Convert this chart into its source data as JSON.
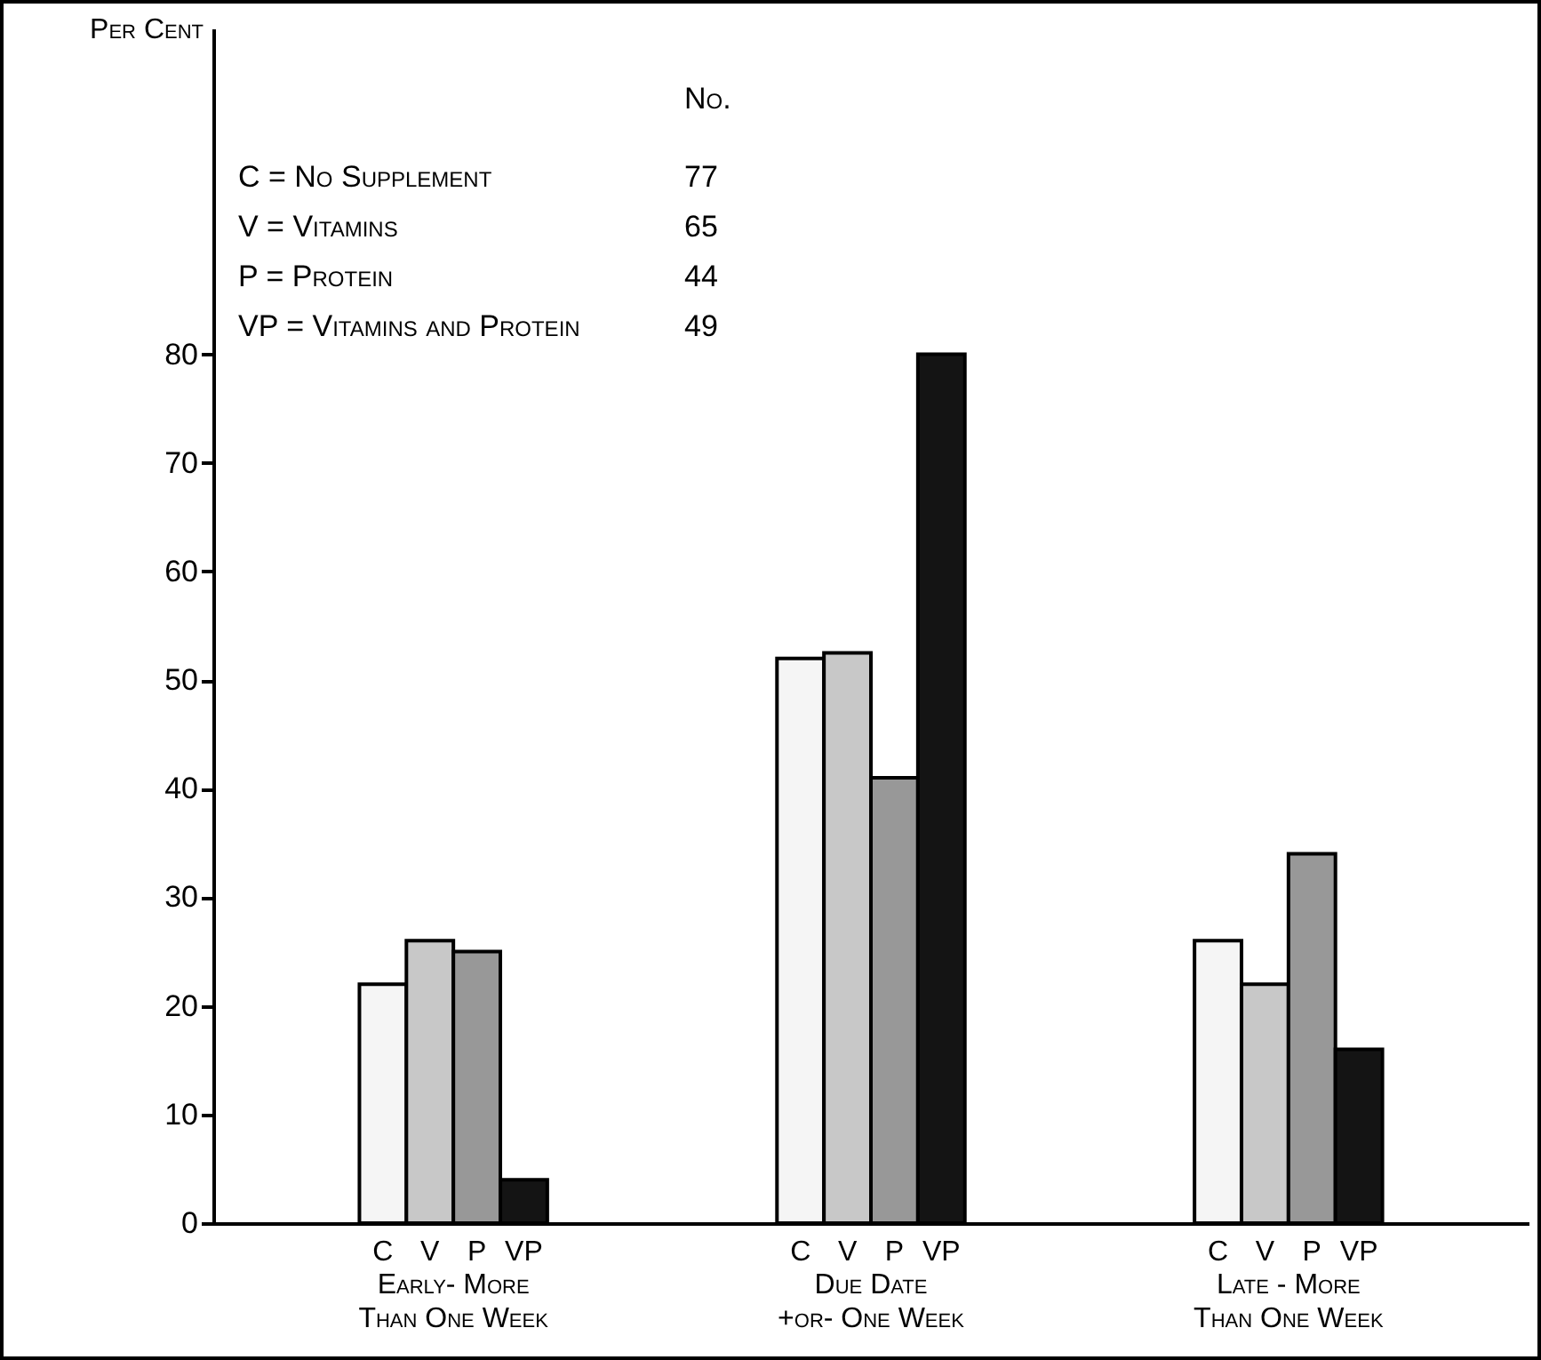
{
  "chart_data": {
    "type": "bar",
    "ylabel": "Per Cent",
    "categories": [
      "Early- More Than One Week",
      "Due Date +or- One Week",
      "Late - More Than One Week"
    ],
    "series": [
      {
        "name": "C",
        "color": "#f5f5f5",
        "values": [
          22,
          52,
          26
        ]
      },
      {
        "name": "V",
        "color": "#c8c8c8",
        "values": [
          26,
          52.5,
          22
        ]
      },
      {
        "name": "P",
        "color": "#989898",
        "values": [
          25,
          41,
          34
        ]
      },
      {
        "name": "VP",
        "color": "#141414",
        "values": [
          4,
          80,
          16
        ]
      }
    ],
    "ylim": [
      0,
      110
    ],
    "yticks": [
      0,
      10,
      20,
      30,
      40,
      50,
      60,
      70,
      80
    ],
    "grid": false,
    "annotations": [
      "No.",
      "C = No Supplement",
      "77",
      "V = Vitamins",
      "65",
      "P = Protein",
      "44",
      "VP = Vitamins and Protein",
      "49"
    ]
  }
}
